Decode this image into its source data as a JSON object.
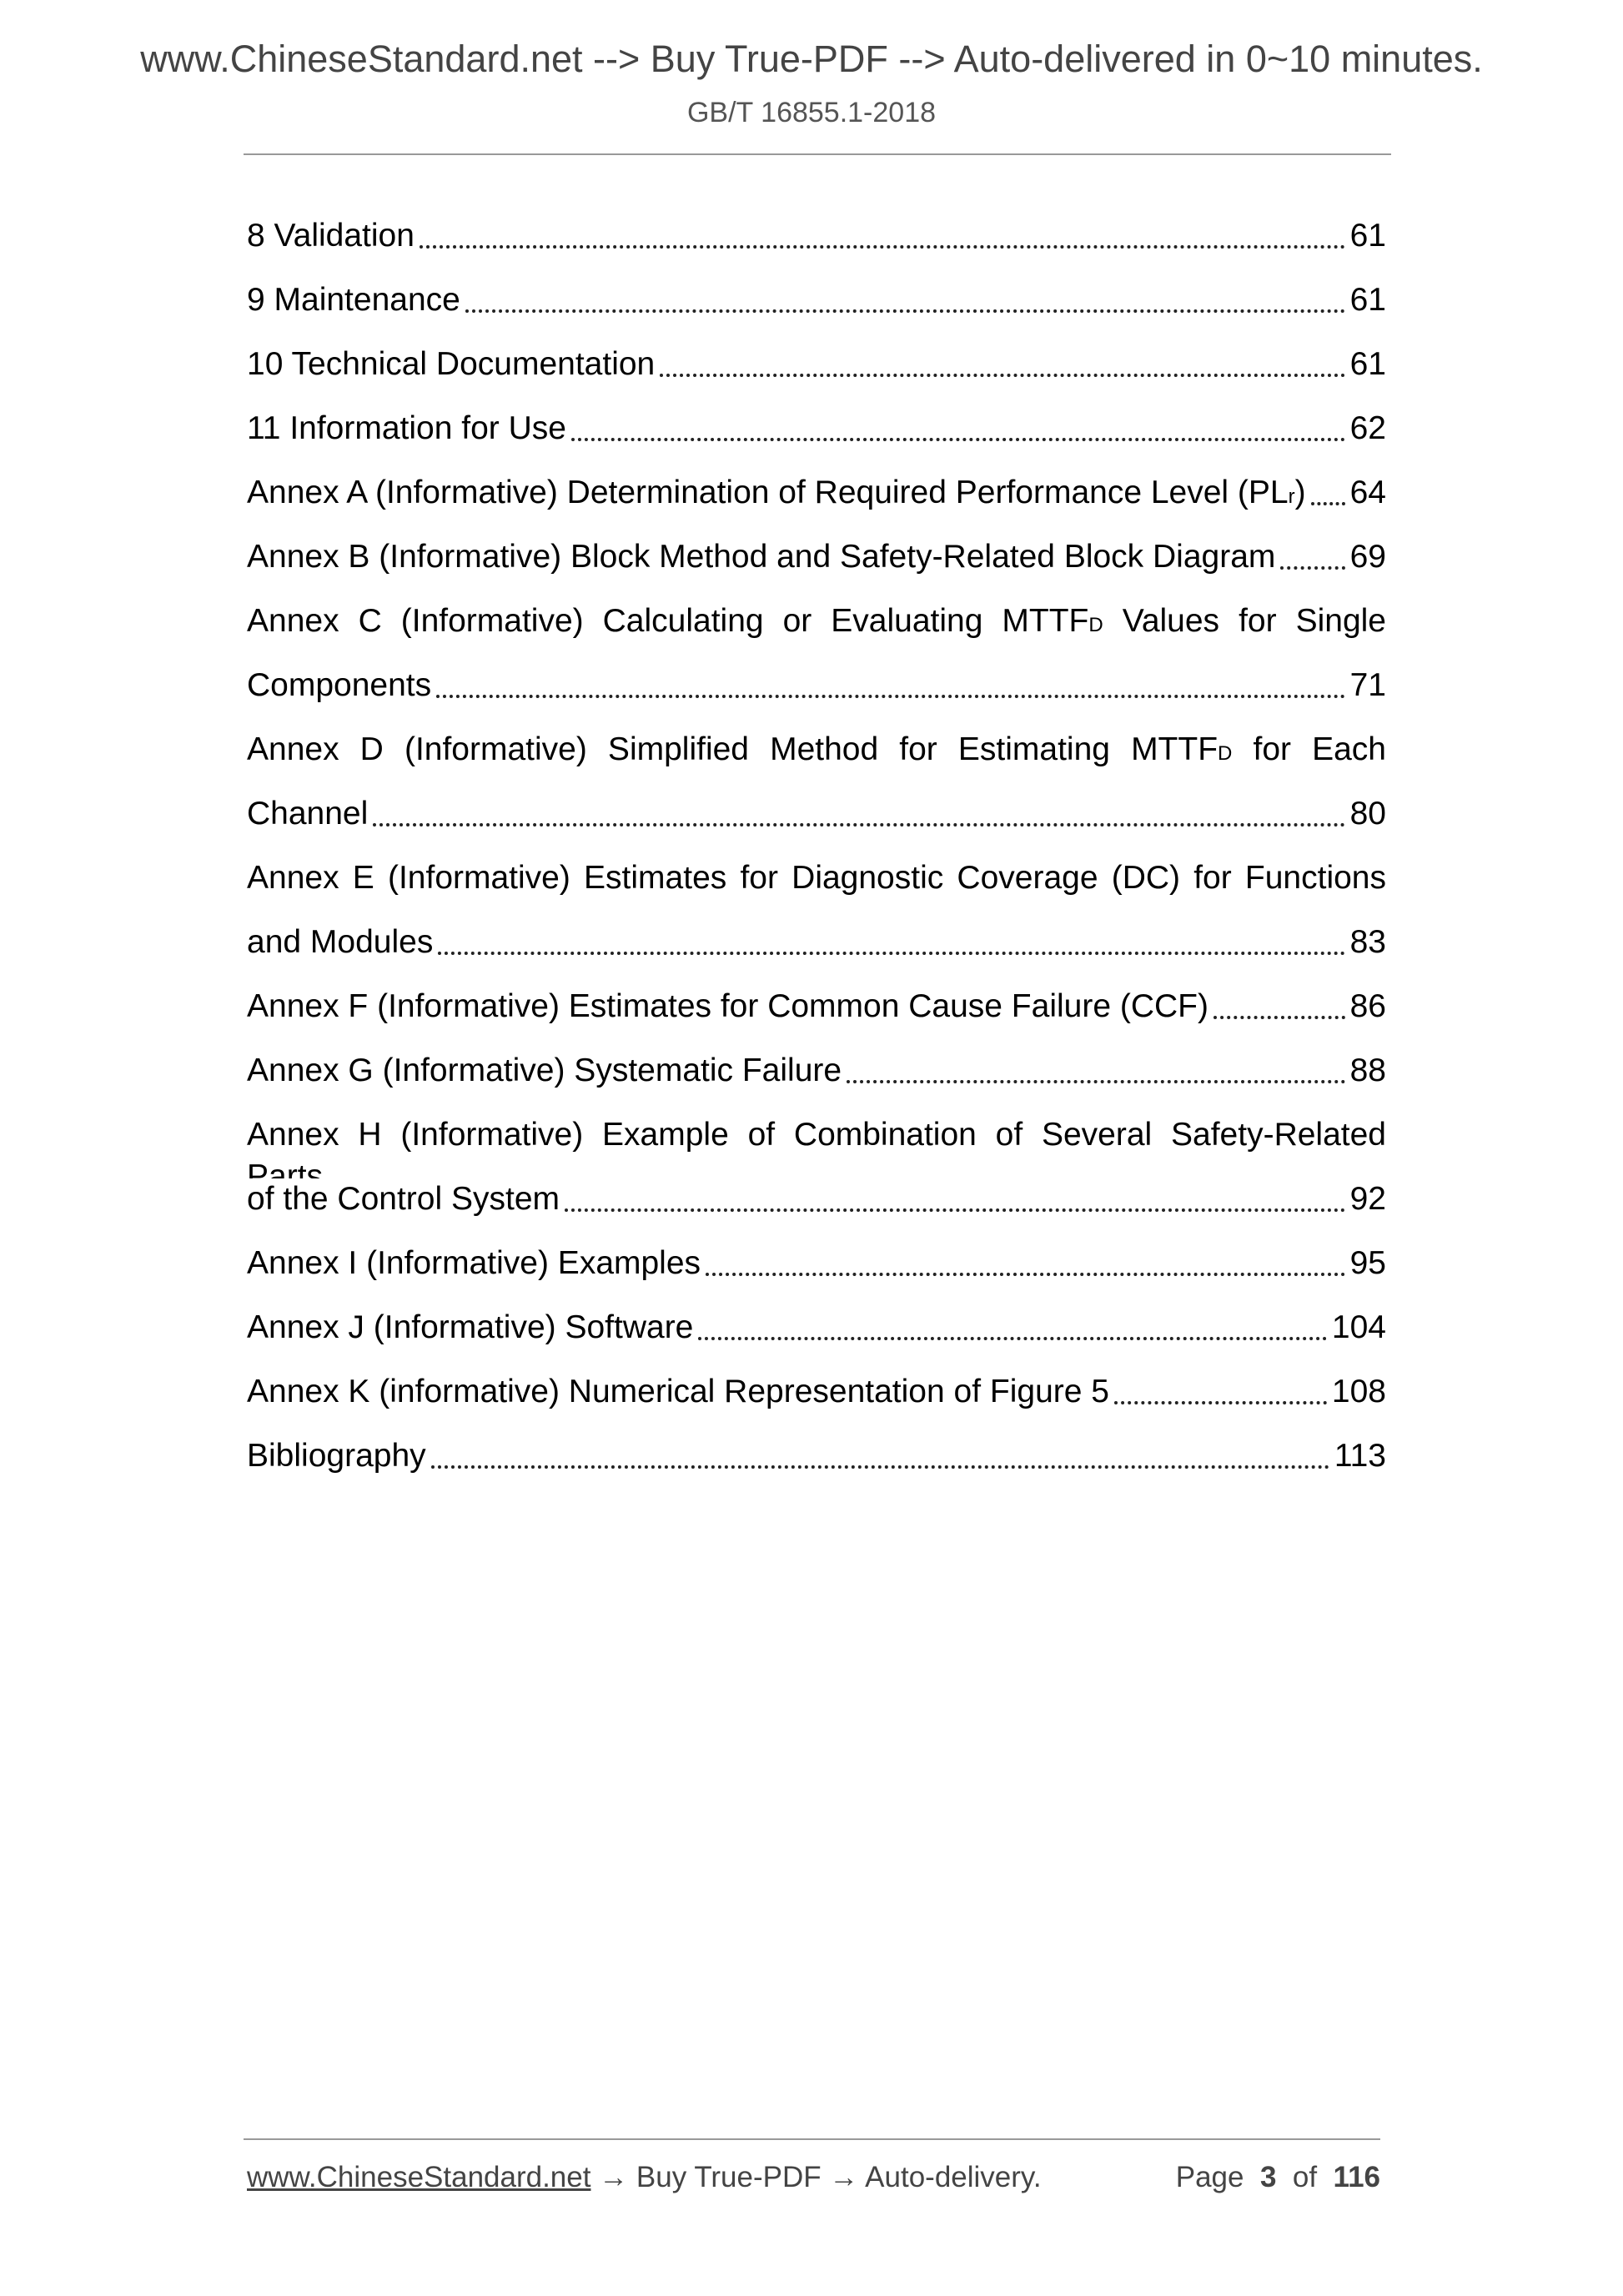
{
  "header": {
    "banner": "www.ChineseStandard.net --> Buy True-PDF --> Auto-delivered in 0~10 minutes.",
    "doc_id": "GB/T 16855.1-2018"
  },
  "toc": [
    {
      "title": "8 Validation",
      "page": "61"
    },
    {
      "title": "9 Maintenance",
      "page": "61"
    },
    {
      "title": "10 Technical Documentation",
      "page": "61"
    },
    {
      "title": "11 Information for Use",
      "page": "62"
    },
    {
      "title": "Annex A (Informative) Determination of Required Performance Level (PL",
      "sub": "r",
      "post": ")",
      "page": "64"
    },
    {
      "title": "Annex B (Informative) Block Method and Safety-Related Block Diagram",
      "page": "69"
    },
    {
      "first_line": "Annex C (Informative) Calculating or Evaluating MTTF",
      "sub": "D",
      "post": " Values for Single",
      "title": "Components",
      "page": "71"
    },
    {
      "first_line": "Annex D (Informative) Simplified Method for Estimating MTTF",
      "sub": "D",
      "post": " for Each",
      "title": "Channel",
      "page": "80"
    },
    {
      "first_line": "Annex E (Informative) Estimates for Diagnostic Coverage (DC) for Functions",
      "title": "and Modules",
      "page": "83"
    },
    {
      "title": "Annex F (Informative) Estimates for Common Cause Failure (CCF)",
      "page": "86"
    },
    {
      "title": "Annex G (Informative) Systematic Failure",
      "page": "88"
    },
    {
      "first_line": "Annex H (Informative) Example of Combination of Several Safety-Related Parts",
      "title": "of the Control System",
      "page": "92"
    },
    {
      "title": "Annex I (Informative) Examples",
      "page": "95"
    },
    {
      "title": "Annex J (Informative) Software",
      "page": "104"
    },
    {
      "title": "Annex K (informative) Numerical Representation of Figure 5",
      "page": "108"
    },
    {
      "title": "Bibliography",
      "page": "113"
    }
  ],
  "footer": {
    "link": "www.ChineseStandard.net",
    "text": " → Buy True-PDF → Auto-delivery.",
    "page_label": "Page",
    "page": "3",
    "of_label": "of",
    "total": "116"
  }
}
